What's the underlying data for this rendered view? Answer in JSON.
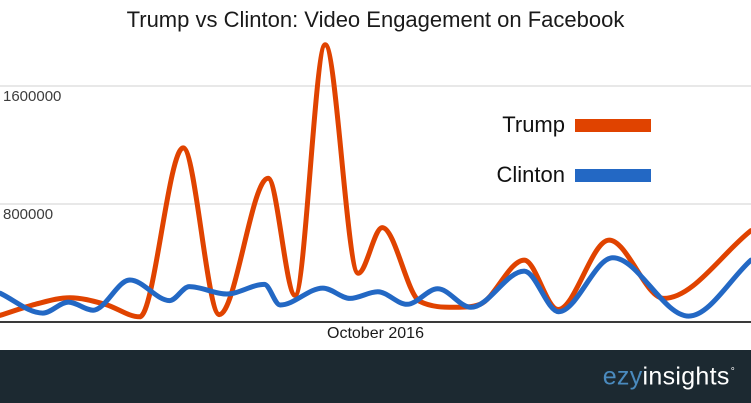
{
  "chart_data": {
    "type": "line",
    "title": "Trump vs Clinton: Video Engagement on Facebook",
    "xlabel": "October 2016",
    "ylabel": "",
    "y_ticks": [
      800000,
      1600000
    ],
    "ylim": [
      0,
      1900000
    ],
    "x_unit": "percent-of-x-axis (individual dates not labeled on axis)",
    "grid": "horizontal gridlines at y ticks only",
    "legend_position": "inside upper-right",
    "series": [
      {
        "name": "Trump",
        "color": "#E04300",
        "points": [
          [
            0,
            45000
          ],
          [
            4.7,
            120000
          ],
          [
            9.3,
            165000
          ],
          [
            14,
            120000
          ],
          [
            18.6,
            35000
          ],
          [
            24.4,
            1180000
          ],
          [
            29.2,
            50000
          ],
          [
            35.7,
            975000
          ],
          [
            39.3,
            180000
          ],
          [
            43.3,
            1880000
          ],
          [
            47.7,
            330000
          ],
          [
            50.9,
            640000
          ],
          [
            55.9,
            140000
          ],
          [
            60.6,
            100000
          ],
          [
            63.9,
            120000
          ],
          [
            69.8,
            420000
          ],
          [
            74.3,
            85000
          ],
          [
            81.1,
            555000
          ],
          [
            88.4,
            160000
          ],
          [
            100,
            620000
          ]
        ]
      },
      {
        "name": "Clinton",
        "color": "#2368C4",
        "points": [
          [
            0,
            195000
          ],
          [
            5.7,
            60000
          ],
          [
            9.1,
            135000
          ],
          [
            12.4,
            80000
          ],
          [
            17.3,
            285000
          ],
          [
            22.6,
            145000
          ],
          [
            25.2,
            240000
          ],
          [
            30.2,
            190000
          ],
          [
            35.2,
            255000
          ],
          [
            37.3,
            115000
          ],
          [
            43,
            230000
          ],
          [
            46.6,
            160000
          ],
          [
            50.3,
            205000
          ],
          [
            54.2,
            120000
          ],
          [
            58.3,
            225000
          ],
          [
            62.7,
            100000
          ],
          [
            69.8,
            345000
          ],
          [
            74.4,
            70000
          ],
          [
            81.6,
            435000
          ],
          [
            91.7,
            40000
          ],
          [
            100,
            420000
          ]
        ]
      }
    ]
  },
  "colors": {
    "gridline": "#d2d2d2",
    "axis": "#3a3a3a",
    "footer_bg": "#1c2931",
    "brand_blue": "#4a8abe"
  },
  "footer": {
    "brand_ezy": "ezy",
    "brand_insights": "insights",
    "brand_mark": "°"
  }
}
